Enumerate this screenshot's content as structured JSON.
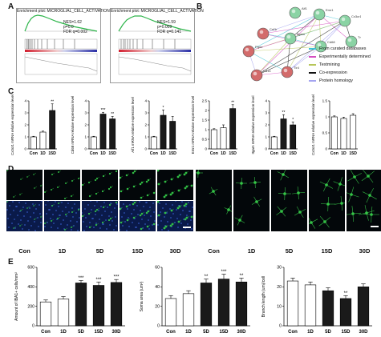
{
  "panels": {
    "A": "A",
    "B": "B",
    "C": "C",
    "D": "D",
    "E": "E"
  },
  "gsea": [
    {
      "title": "Enrichment plot: MICROGLIAL_CELL_ACTIVATION",
      "nes": "NES=1.62",
      "p": "p=0.0",
      "fdr": "FDR q=0.002"
    },
    {
      "title": "Enrichment plot: MICROGLIAL_CELL_ACTIVATION",
      "nes": "NES=1.59",
      "p": "p=0.009",
      "fdr": "FDR q=0.141"
    }
  ],
  "network": {
    "nodes": [
      "Aif1",
      "Emr1",
      "Cx3cr1",
      "Tmem119",
      "Cd68",
      "Itgam",
      "Csf1r",
      "Ptprc",
      "Cd14",
      "Tlr4"
    ]
  },
  "legend": [
    {
      "label": "From curated databases",
      "color": "#3ec1d3"
    },
    {
      "label": "Experimentally determined",
      "color": "#d44dc0"
    },
    {
      "label": "Textmining",
      "color": "#b7c65a"
    },
    {
      "label": "Co-expression",
      "color": "#111111"
    },
    {
      "label": "Protein homology",
      "color": "#a4a4f0"
    }
  ],
  "micro_labels_left": [
    "Con",
    "1D",
    "5D",
    "15D",
    "30D"
  ],
  "micro_labels_right": [
    "Con",
    "1D",
    "5D",
    "15D",
    "30D"
  ],
  "chart_data": [
    {
      "type": "bar",
      "panel": "C",
      "ylabel": "Cx3cr1 mRNA relative expression level",
      "categories": [
        "Con",
        "1D",
        "15D"
      ],
      "values": [
        1.0,
        1.4,
        3.2
      ],
      "errors": [
        0.05,
        0.08,
        0.55
      ],
      "sig": [
        "",
        "",
        "**"
      ],
      "ylim": [
        0,
        4
      ],
      "yticks": [
        0,
        1,
        2,
        3,
        4
      ],
      "colors": [
        "#ffffff",
        "#ffffff",
        "#1a1a1a"
      ]
    },
    {
      "type": "bar",
      "panel": "C",
      "ylabel": "Cd68 mRNA relative expression level",
      "categories": [
        "Con",
        "1D",
        "15D"
      ],
      "values": [
        1.0,
        2.9,
        2.5
      ],
      "errors": [
        0.05,
        0.15,
        0.2
      ],
      "sig": [
        "",
        "***",
        "**"
      ],
      "ylim": [
        0,
        4
      ],
      "yticks": [
        0,
        1,
        2,
        3,
        4
      ],
      "colors": [
        "#ffffff",
        "#1a1a1a",
        "#1a1a1a"
      ]
    },
    {
      "type": "bar",
      "panel": "C",
      "ylabel": "Aif1 mRNA relative expression level",
      "categories": [
        "Con",
        "1D",
        "15D"
      ],
      "values": [
        1.0,
        2.8,
        2.3
      ],
      "errors": [
        0.05,
        0.45,
        0.4
      ],
      "sig": [
        "",
        "*",
        ""
      ],
      "ylim": [
        0,
        4
      ],
      "yticks": [
        0,
        1,
        2,
        3,
        4
      ],
      "colors": [
        "#ffffff",
        "#1a1a1a",
        "#1a1a1a"
      ]
    },
    {
      "type": "bar",
      "panel": "C",
      "ylabel": "Emr1 mRNA relative expression level",
      "categories": [
        "Con",
        "1D",
        "15D"
      ],
      "values": [
        1.0,
        1.1,
        2.1
      ],
      "errors": [
        0.05,
        0.15,
        0.2
      ],
      "sig": [
        "",
        "",
        "**"
      ],
      "ylim": [
        0,
        2.5
      ],
      "yticks": [
        0,
        0.5,
        1,
        1.5,
        2,
        2.5
      ],
      "colors": [
        "#ffffff",
        "#ffffff",
        "#1a1a1a"
      ]
    },
    {
      "type": "bar",
      "panel": "C",
      "ylabel": "Itgam mRNA relative expression level",
      "categories": [
        "Con",
        "1D",
        "15D"
      ],
      "values": [
        1.0,
        2.5,
        2.0
      ],
      "errors": [
        0.05,
        0.35,
        0.25
      ],
      "sig": [
        "",
        "**",
        "*"
      ],
      "ylim": [
        0,
        4
      ],
      "yticks": [
        0,
        1,
        2,
        3,
        4
      ],
      "colors": [
        "#ffffff",
        "#1a1a1a",
        "#1a1a1a"
      ]
    },
    {
      "type": "bar",
      "panel": "C",
      "ylabel": "Cx3cr1 mRNA relative expression level",
      "categories": [
        "Con",
        "1D",
        "15D"
      ],
      "values": [
        1.0,
        0.95,
        1.05
      ],
      "errors": [
        0.03,
        0.04,
        0.05
      ],
      "sig": [
        "",
        "",
        ""
      ],
      "ylim": [
        0,
        1.5
      ],
      "yticks": [
        0,
        0.5,
        1,
        1.5
      ],
      "colors": [
        "#ffffff",
        "#ffffff",
        "#ffffff"
      ]
    },
    {
      "type": "bar",
      "panel": "E",
      "ylabel": "Amount of IBA1+ cells/mm²",
      "categories": [
        "Con",
        "1D",
        "5D",
        "15D",
        "30D"
      ],
      "values": [
        245,
        275,
        440,
        415,
        445
      ],
      "errors": [
        20,
        25,
        25,
        35,
        30
      ],
      "sig": [
        "",
        "",
        "***",
        "***",
        "***"
      ],
      "ylim": [
        0,
        600
      ],
      "yticks": [
        0,
        200,
        400,
        600
      ],
      "colors": [
        "#ffffff",
        "#ffffff",
        "#1a1a1a",
        "#1a1a1a",
        "#1a1a1a"
      ]
    },
    {
      "type": "bar",
      "panel": "E",
      "ylabel": "Soma area (um²)",
      "categories": [
        "Con",
        "1D",
        "5D",
        "15D",
        "30D"
      ],
      "values": [
        28,
        33,
        44,
        48,
        45
      ],
      "errors": [
        3,
        3,
        4,
        5,
        4
      ],
      "sig": [
        "",
        "",
        "**",
        "***",
        "**"
      ],
      "ylim": [
        0,
        60
      ],
      "yticks": [
        0,
        20,
        40,
        60
      ],
      "colors": [
        "#ffffff",
        "#ffffff",
        "#1a1a1a",
        "#1a1a1a",
        "#1a1a1a"
      ]
    },
    {
      "type": "bar",
      "panel": "E",
      "ylabel": "Branch length (um)/cell",
      "categories": [
        "Con",
        "1D",
        "5D",
        "15D",
        "30D"
      ],
      "values": [
        23,
        21,
        18,
        14,
        20
      ],
      "errors": [
        1.5,
        1.5,
        1.5,
        1.5,
        1.5
      ],
      "sig": [
        "",
        "",
        "",
        "**",
        ""
      ],
      "ylim": [
        0,
        30
      ],
      "yticks": [
        0,
        10,
        20,
        30
      ],
      "colors": [
        "#ffffff",
        "#ffffff",
        "#1a1a1a",
        "#1a1a1a",
        "#1a1a1a"
      ]
    }
  ]
}
